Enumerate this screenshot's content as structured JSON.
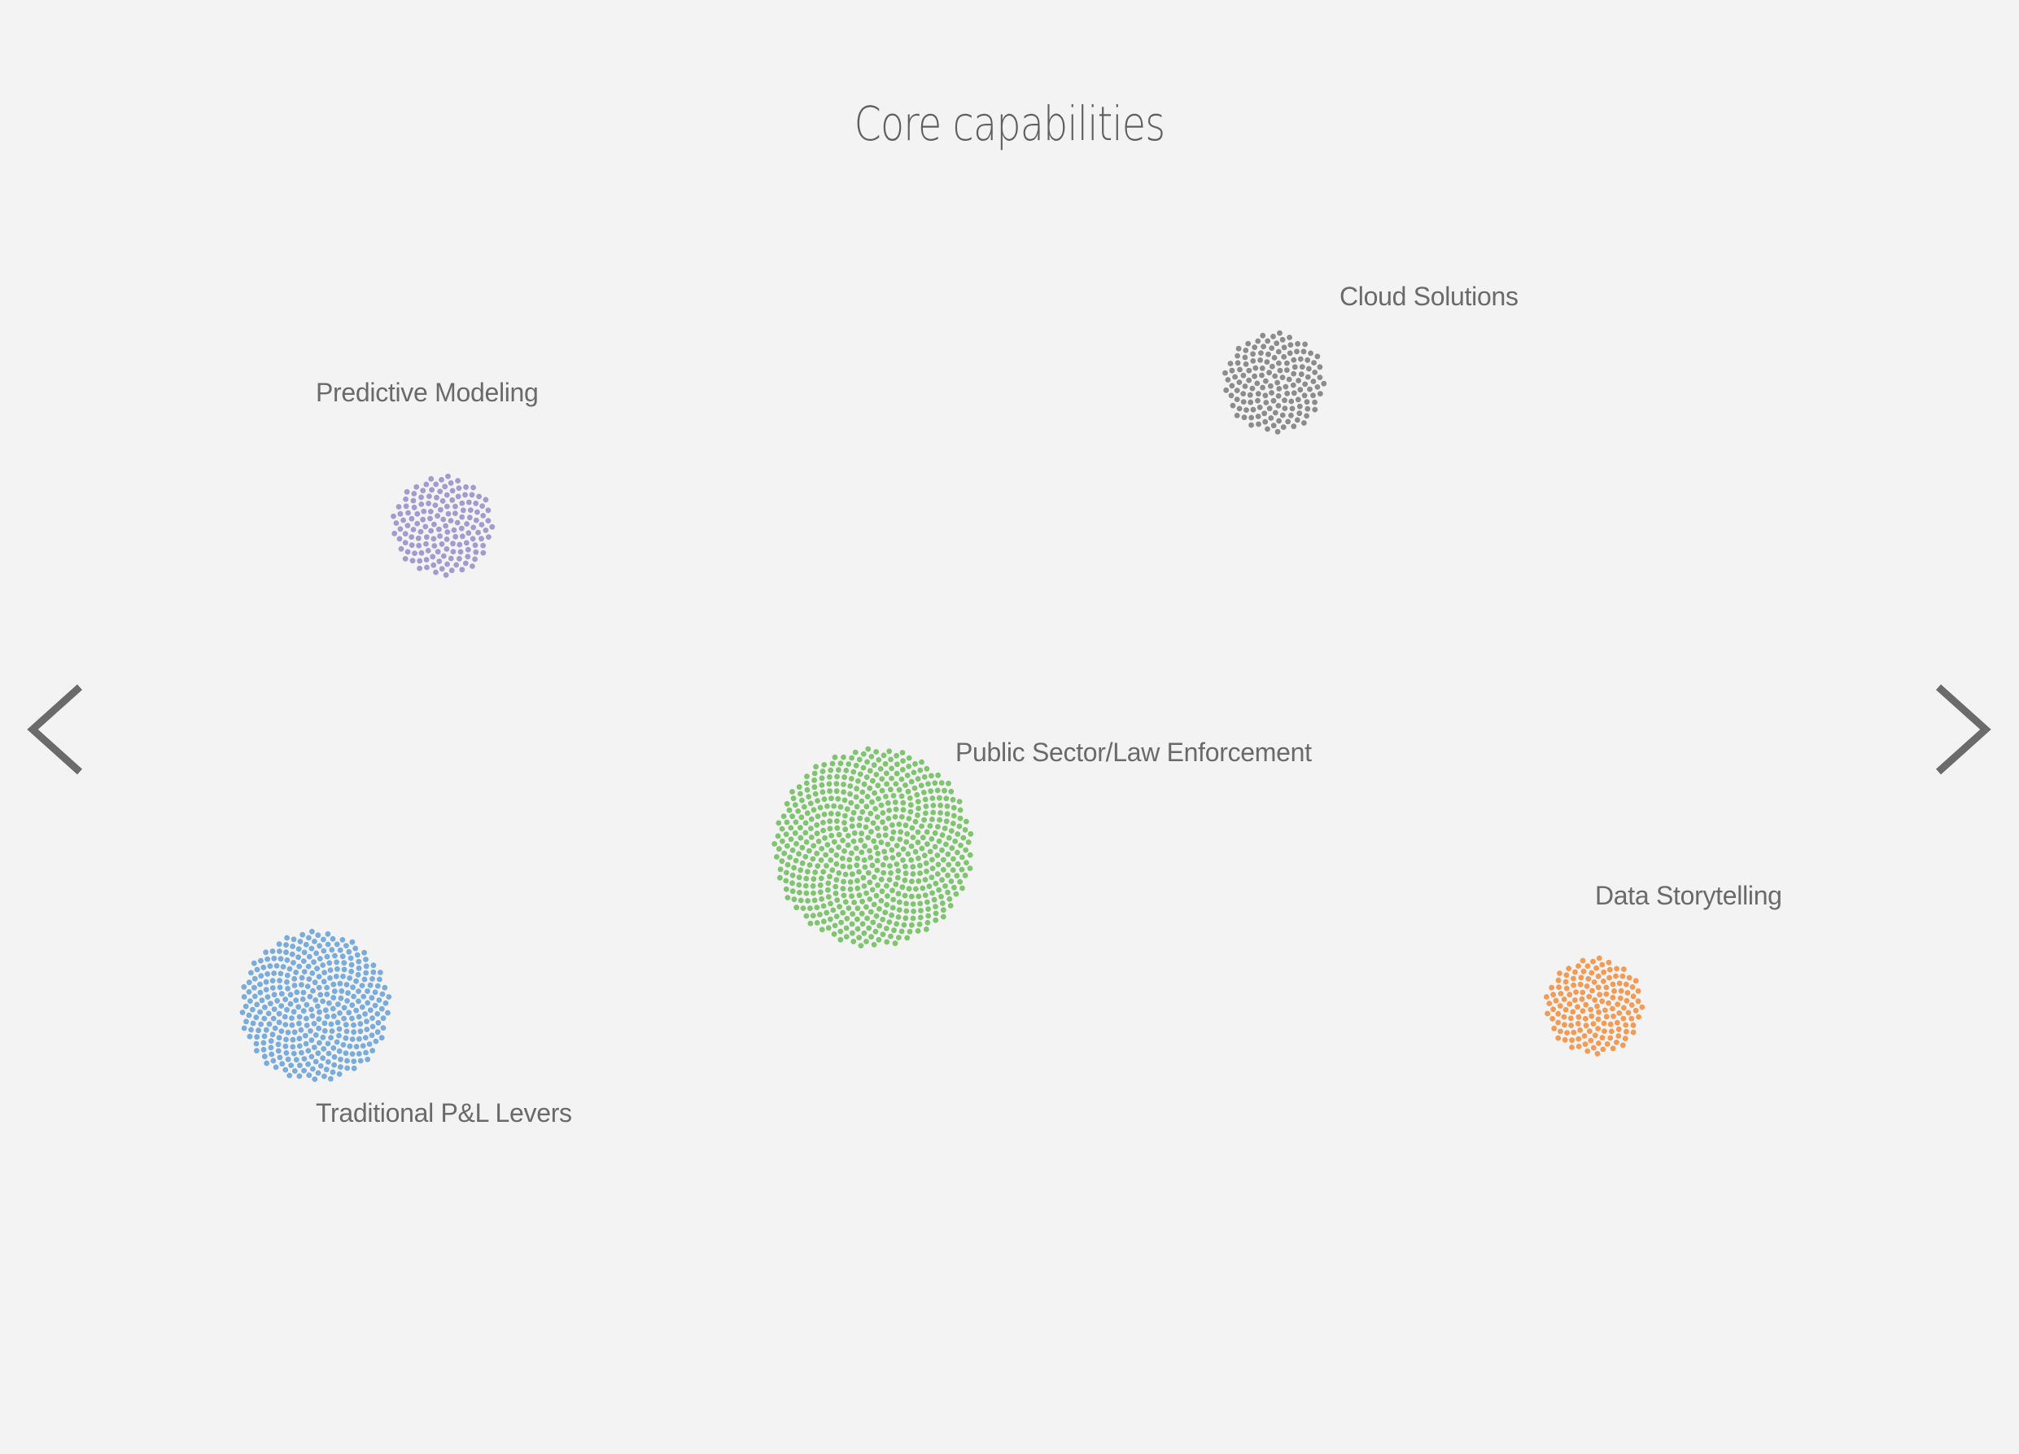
{
  "page": {
    "title": "Core capabilities"
  },
  "clusters": [
    {
      "label": "Cloud Solutions",
      "color": "#8c8c8c"
    },
    {
      "label": "Predictive Modeling",
      "color": "#a39bcf"
    },
    {
      "label": "Public Sector/Law Enforcement",
      "color": "#7fc46f"
    },
    {
      "label": "Data Storytelling",
      "color": "#f39a55"
    },
    {
      "label": "Traditional P&L Levers",
      "color": "#79acdb"
    }
  ],
  "navigation": {
    "prev_icon": "chevron-left-icon",
    "next_icon": "chevron-right-icon",
    "arrow_color": "#6b6b6b"
  }
}
